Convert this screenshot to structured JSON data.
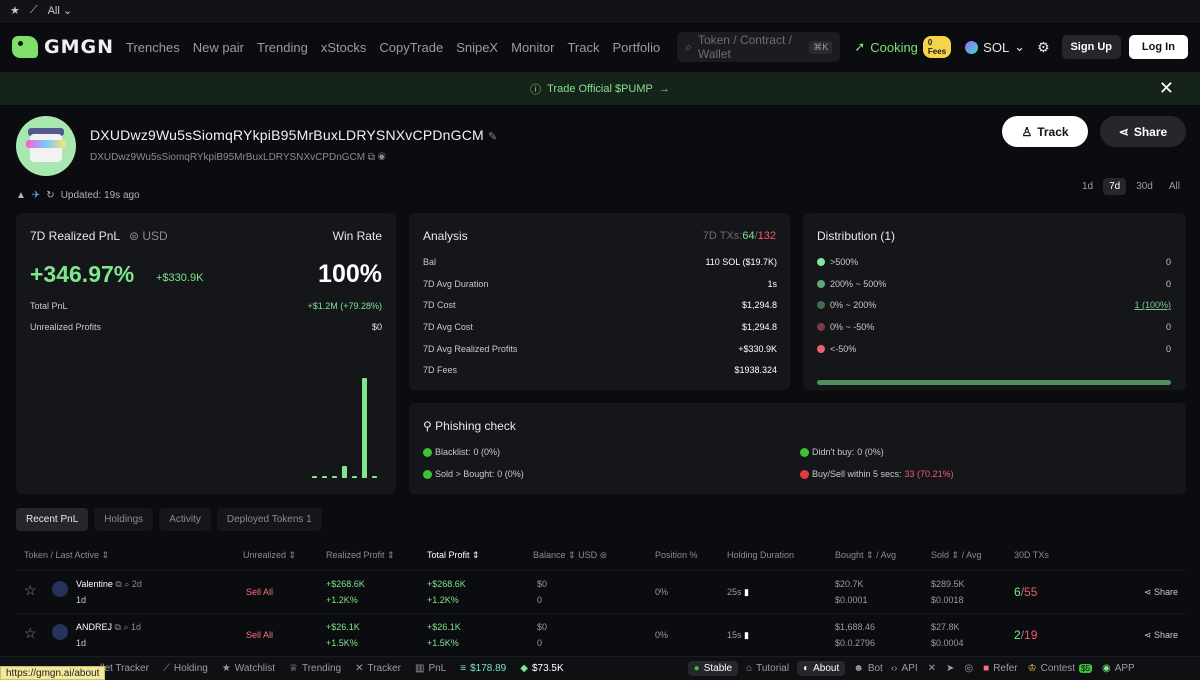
{
  "topstrip": {
    "filter_label": "All"
  },
  "nav": {
    "brand": "GMGN",
    "links": [
      "Trenches",
      "New pair",
      "Trending",
      "xStocks",
      "CopyTrade",
      "SnipeX",
      "Monitor",
      "Track",
      "Portfolio"
    ],
    "search_placeholder": "Token / Contract / Wallet",
    "search_kbd": "⌘K",
    "cooking_label": "Cooking",
    "fees_badge": "0 Fees",
    "chain": "SOL",
    "signup": "Sign Up",
    "login": "Log In"
  },
  "banner": {
    "text": "Trade Official $PUMP",
    "close": "✕"
  },
  "profile": {
    "address": "DXUDwz9Wu5sSiomqRYkpiB95MrBuxLDRYSNXvCPDnGCM",
    "address_sub": "DXUDwz9Wu5sSiomqRYkpiB95MrBuxLDRYSNXvCPDnGCM",
    "updated": "Updated: 19s ago",
    "track": "Track",
    "share": "Share",
    "periods": [
      "1d",
      "7d",
      "30d",
      "All"
    ],
    "active_period": "7d"
  },
  "pnl_card": {
    "title": "7D Realized PnL",
    "currency": "USD",
    "pnl_pct": "+346.97%",
    "pnl_usd": "+$330.9K",
    "win_rate_label": "Win Rate",
    "win_rate": "100%",
    "total_pnl_label": "Total PnL",
    "total_pnl": "+$1.2M (+79.28%)",
    "unrealized_label": "Unrealized Profits",
    "unrealized": "$0",
    "bars": [
      2,
      2,
      2,
      12,
      2,
      100,
      2
    ]
  },
  "analysis": {
    "title": "Analysis",
    "txs_label": "7D TXs:",
    "txs_buy": "64",
    "txs_sep": "/",
    "txs_sell": "132",
    "rows": [
      {
        "label": "Bal",
        "value": "110 SOL ($19.7K)"
      },
      {
        "label": "7D Avg Duration",
        "value": "1s"
      },
      {
        "label": "7D Cost",
        "value": "$1,294.8"
      },
      {
        "label": "7D Avg Cost",
        "value": "$1,294.8"
      },
      {
        "label": "7D Avg Realized Profits",
        "value": "+$330.9K"
      },
      {
        "label": "7D Fees",
        "value": "$1938.324"
      }
    ]
  },
  "distribution": {
    "title": "Distribution (1)",
    "rows": [
      {
        "label": ">500%",
        "value": "0",
        "color": "#86e3a0"
      },
      {
        "label": "200% ~ 500%",
        "value": "0",
        "color": "#5ea977"
      },
      {
        "label": "0% ~ 200%",
        "value": "1 (100%)",
        "color": "#3f6d4e"
      },
      {
        "label": "0% ~ -50%",
        "value": "0",
        "color": "#7a3b45"
      },
      {
        "label": "<-50%",
        "value": "0",
        "color": "#ef5e6d"
      }
    ]
  },
  "phishing": {
    "title": "Phishing check",
    "blacklist_label": "Blacklist:",
    "blacklist": "0 (0%)",
    "sold_label": "Sold > Bought:",
    "sold": "0 (0%)",
    "didnt_buy_label": "Didn't buy:",
    "didnt_buy": "0 (0%)",
    "within_label": "Buy/Sell within 5 secs:",
    "within": "33 (70.21%)"
  },
  "tabs": [
    "Recent PnL",
    "Holdings",
    "Activity",
    "Deployed Tokens 1"
  ],
  "table": {
    "headers": {
      "token": "Token / Last Active",
      "unrealized": "Unrealized",
      "realized": "Realized Profit",
      "total": "Total Profit",
      "balance": "Balance",
      "balance_unit": "USD",
      "position": "Position %",
      "holding": "Holding Duration",
      "bought": "Bought",
      "bought_avg": "Avg",
      "sold": "Sold",
      "sold_avg": "Avg",
      "txs": "30D TXs"
    },
    "rows": [
      {
        "name": "Valentine",
        "age": "2d",
        "active": "1d",
        "unrealized": "Sell All",
        "realized": "+$268.6K",
        "realized_pct": "+1.2K%",
        "total": "+$268.6K",
        "total_pct": "+1.2K%",
        "balance": "$0",
        "balance_sub": "0",
        "position": "0%",
        "holding": "25s",
        "bought": "$20.7K",
        "bought_avg": "$0.0001",
        "sold": "$289.5K",
        "sold_avg": "$0.0018",
        "tx_buy": "6",
        "tx_sep": "/",
        "tx_sell": "55",
        "share": "Share"
      },
      {
        "name": "ANDREJ",
        "age": "1d",
        "active": "1d",
        "unrealized": "Sell All",
        "realized": "+$26.1K",
        "realized_pct": "+1.5K%",
        "total": "+$26.1K",
        "total_pct": "+1.5K%",
        "balance": "$0",
        "balance_sub": "0",
        "position": "0%",
        "holding": "15s",
        "bought": "$1,688.46",
        "bought_avg": "$0.0.2796",
        "sold": "$27.8K",
        "sold_avg": "$0.0004",
        "tx_buy": "2",
        "tx_sep": "/",
        "tx_sell": "19",
        "share": "Share"
      }
    ]
  },
  "bottom": {
    "items": [
      "llet Tracker",
      "Holding",
      "Watchlist",
      "Trending",
      "Tracker",
      "PnL"
    ],
    "price_sol": "$178.89",
    "price_2": "$73.5K",
    "right_items": [
      "Stable",
      "Tutorial",
      "About",
      "Bot",
      "API",
      "Refer",
      "Contest",
      "APP"
    ],
    "contest_badge": "$5",
    "status_url": "https://gmgn.ai/about"
  }
}
